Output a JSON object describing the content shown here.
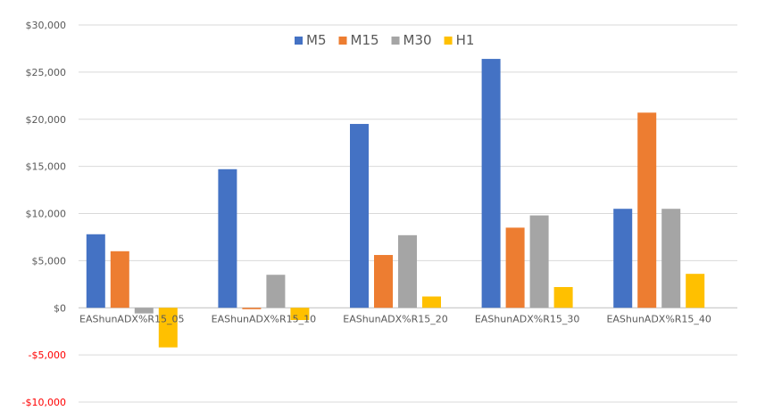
{
  "chart_data": {
    "type": "bar",
    "title": "",
    "xlabel": "",
    "ylabel": "",
    "ylim": [
      -10000,
      30000
    ],
    "yticks": [
      30000,
      25000,
      20000,
      15000,
      10000,
      5000,
      0,
      -5000,
      -10000
    ],
    "ytick_labels": [
      "$30,000",
      "$25,000",
      "$20,000",
      "$15,000",
      "$10,000",
      "$5,000",
      "$0",
      "-$5,000",
      "-$10,000"
    ],
    "negative_tick_color": "#ff0000",
    "grid": true,
    "legend_position": "top-center",
    "categories": [
      "EAShunADX%R15_05",
      "EAShunADX%R15_10",
      "EAShunADX%R15_20",
      "EAShunADX%R15_30",
      "EAShunADX%R15_40"
    ],
    "series": [
      {
        "name": "M5",
        "color": "#4472c4",
        "values": [
          7800,
          14700,
          19500,
          26400,
          10500
        ]
      },
      {
        "name": "M15",
        "color": "#ed7d31",
        "values": [
          6000,
          -150,
          5600,
          8500,
          20700
        ]
      },
      {
        "name": "M30",
        "color": "#a5a5a5",
        "values": [
          -600,
          3500,
          7700,
          9800,
          10500
        ]
      },
      {
        "name": "H1",
        "color": "#ffc000",
        "values": [
          -4200,
          -1300,
          1200,
          2200,
          3600
        ]
      }
    ]
  }
}
